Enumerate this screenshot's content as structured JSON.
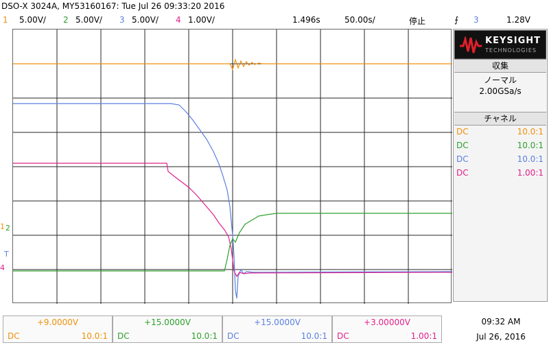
{
  "title": "DSO-X 3024A, MY53160167: Tue Jul 26 09:33:20 2016",
  "colors": {
    "ch1": "#f0900a",
    "ch2": "#2ca02c",
    "ch3": "#5a7fe0",
    "ch4": "#e0208a"
  },
  "channels_header": [
    {
      "num": "1",
      "scale": "5.00V/"
    },
    {
      "num": "2",
      "scale": "5.00V/"
    },
    {
      "num": "3",
      "scale": "5.00V/"
    },
    {
      "num": "4",
      "scale": "1.00V/"
    }
  ],
  "timebase": "1.496s",
  "timebase_display": "1.496s",
  "timescale": "50.00s/",
  "timescale_display": "50.00s/",
  "run_state": "停止",
  "trigger": {
    "icon": "trigger-edge-icon",
    "channel": "3",
    "level": "1.28V"
  },
  "logo": {
    "brand": "KEYSIGHT",
    "sub": "TECHNOLOGIES"
  },
  "acquisition": {
    "heading": "収集",
    "mode": "ノーマル",
    "rate": "2.00GSa/s"
  },
  "channel_panel": {
    "heading": "チャネル",
    "rows": [
      {
        "coupling": "DC",
        "probe": "10.0:1"
      },
      {
        "coupling": "DC",
        "probe": "10.0:1"
      },
      {
        "coupling": "DC",
        "probe": "10.0:1"
      },
      {
        "coupling": "DC",
        "probe": "1.00:1"
      }
    ]
  },
  "markers": {
    "m1": "1",
    "m2": "2",
    "m3": "T",
    "m4": "4"
  },
  "offsets": [
    {
      "offset": "+9.0000V",
      "coupling": "DC",
      "probe": "10.0:1"
    },
    {
      "offset": "+15.0000V",
      "coupling": "DC",
      "probe": "10.0:1"
    },
    {
      "offset": "+15.0000V",
      "coupling": "DC",
      "probe": "10.0:1"
    },
    {
      "offset": "+3.00000V",
      "coupling": "DC",
      "probe": "1.00:1"
    }
  ],
  "clock": {
    "time": "09:32 AM",
    "date": "Jul 26, 2016"
  }
}
